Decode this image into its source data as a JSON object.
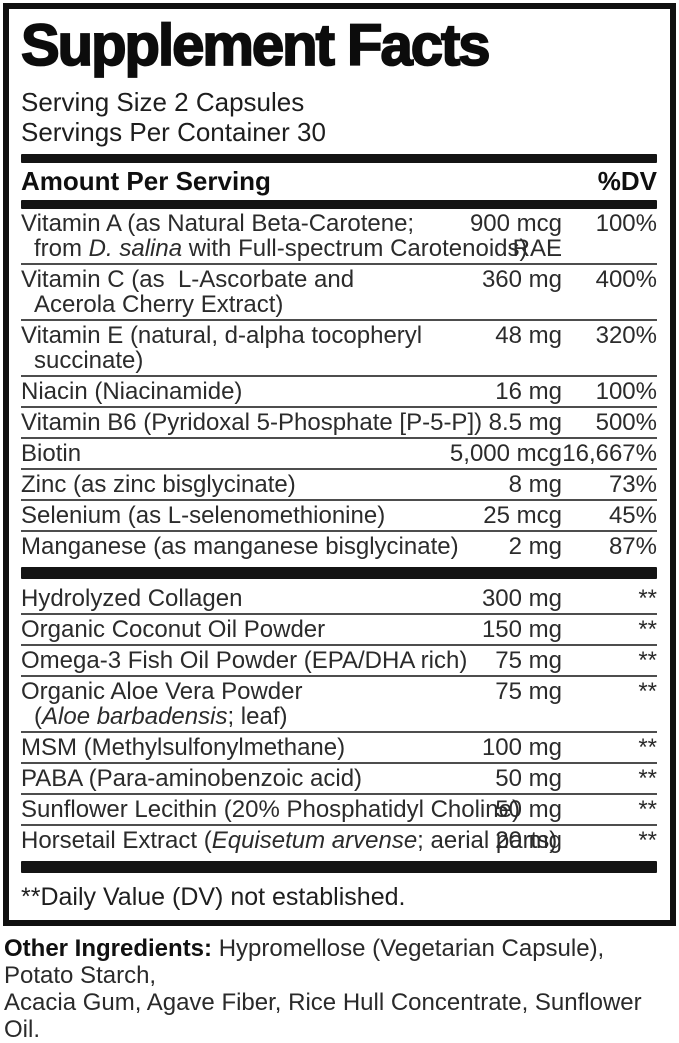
{
  "colors": {
    "ink": "#101010",
    "rule": "#4d4d4d",
    "bar": "#141414"
  },
  "label": {
    "title": "Supplement Facts",
    "serving_size": "Serving Size 2 Capsules",
    "servings_per_container": "Servings Per Container 30",
    "column_header": "Amount Per Serving",
    "dv_header": "%DV",
    "vitamins": [
      {
        "name_lines": [
          [
            {
              "t": "Vitamin A (as Natural Beta-Carotene;"
            }
          ],
          [
            {
              "t": "from "
            },
            {
              "t": "D. salina",
              "i": true
            },
            {
              "t": " with Full-spectrum Carotenoids)"
            }
          ]
        ],
        "amount_lines": [
          "900 mcg",
          "RAE"
        ],
        "dv": "100%"
      },
      {
        "name_lines": [
          [
            {
              "t": "Vitamin C (as  L-Ascorbate and"
            }
          ],
          [
            {
              "t": "Acerola Cherry Extract)"
            }
          ]
        ],
        "amount_lines": [
          "360 mg"
        ],
        "dv": "400%"
      },
      {
        "name_lines": [
          [
            {
              "t": "Vitamin E (natural, d-alpha tocopheryl"
            }
          ],
          [
            {
              "t": "succinate)"
            }
          ]
        ],
        "amount_lines": [
          "48 mg"
        ],
        "dv": "320%"
      },
      {
        "name_lines": [
          [
            {
              "t": "Niacin (Niacinamide)"
            }
          ]
        ],
        "amount_lines": [
          "16 mg"
        ],
        "dv": "100%"
      },
      {
        "name_lines": [
          [
            {
              "t": "Vitamin B6 (Pyridoxal 5-Phosphate [P-5-P])"
            }
          ]
        ],
        "amount_lines": [
          "8.5 mg"
        ],
        "dv": "500%"
      },
      {
        "name_lines": [
          [
            {
              "t": "Biotin"
            }
          ]
        ],
        "amount_lines": [
          "5,000 mcg"
        ],
        "dv": "16,667%"
      },
      {
        "name_lines": [
          [
            {
              "t": "Zinc (as zinc bisglycinate)"
            }
          ]
        ],
        "amount_lines": [
          "8 mg"
        ],
        "dv": "73%"
      },
      {
        "name_lines": [
          [
            {
              "t": "Selenium (as L-selenomethionine)"
            }
          ]
        ],
        "amount_lines": [
          "25 mcg"
        ],
        "dv": "45%"
      },
      {
        "name_lines": [
          [
            {
              "t": "Manganese (as manganese bisglycinate)"
            }
          ]
        ],
        "amount_lines": [
          "2 mg"
        ],
        "dv": "87%"
      }
    ],
    "other_actives": [
      {
        "name_lines": [
          [
            {
              "t": "Hydrolyzed Collagen"
            }
          ]
        ],
        "amount_lines": [
          "300 mg"
        ],
        "dv": "**"
      },
      {
        "name_lines": [
          [
            {
              "t": "Organic Coconut Oil Powder"
            }
          ]
        ],
        "amount_lines": [
          "150 mg"
        ],
        "dv": "**"
      },
      {
        "name_lines": [
          [
            {
              "t": "Omega-3 Fish Oil Powder (EPA/DHA rich)"
            }
          ]
        ],
        "amount_lines": [
          "75 mg"
        ],
        "dv": "**"
      },
      {
        "name_lines": [
          [
            {
              "t": "Organic Aloe Vera Powder"
            }
          ],
          [
            {
              "t": "("
            },
            {
              "t": "Aloe barbadensis",
              "i": true
            },
            {
              "t": "; leaf)"
            }
          ]
        ],
        "amount_lines": [
          "75 mg"
        ],
        "dv": "**"
      },
      {
        "name_lines": [
          [
            {
              "t": "MSM (Methylsulfonylmethane)"
            }
          ]
        ],
        "amount_lines": [
          "100 mg"
        ],
        "dv": "**"
      },
      {
        "name_lines": [
          [
            {
              "t": "PABA (Para-aminobenzoic acid)"
            }
          ]
        ],
        "amount_lines": [
          "50 mg"
        ],
        "dv": "**"
      },
      {
        "name_lines": [
          [
            {
              "t": "Sunflower Lecithin (20% Phosphatidyl Choline)"
            }
          ]
        ],
        "amount_lines": [
          "50 mg"
        ],
        "dv": "**"
      },
      {
        "name_lines": [
          [
            {
              "t": "Horsetail Extract ("
            },
            {
              "t": "Equisetum arvense",
              "i": true
            },
            {
              "t": "; aerial parts)"
            }
          ]
        ],
        "amount_lines": [
          "20 mg"
        ],
        "dv": "**"
      }
    ],
    "footnote": "**Daily Value (DV) not established.",
    "other_ingredients": {
      "label": "Other Ingredients:",
      "line1": "Hypromellose (Vegetarian Capsule), Potato Starch,",
      "line2": "Acacia Gum, Agave Fiber, Rice Hull Concentrate, Sunflower Oil."
    }
  }
}
